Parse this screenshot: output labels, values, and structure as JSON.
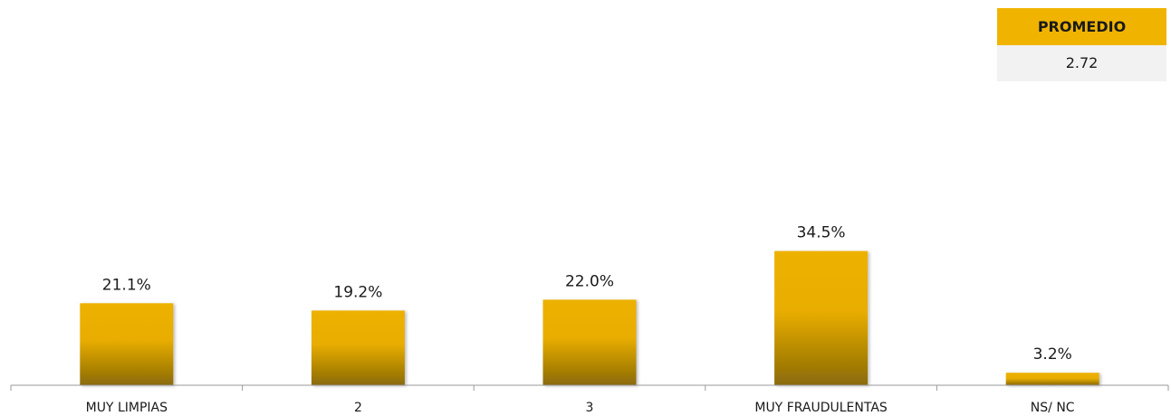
{
  "summary": {
    "header": "PROMEDIO",
    "value": "2.72"
  },
  "colors": {
    "bar_top": "#edb100",
    "bar_bottom": "#8a6a08",
    "header_bg": "#f0b400",
    "value_bg": "#f2f2f2",
    "axis": "#9a9a9a"
  },
  "chart_data": {
    "type": "bar",
    "categories": [
      "MUY LIMPIAS",
      "2",
      "3",
      "MUY FRAUDULENTAS",
      "NS/ NC"
    ],
    "values": [
      21.1,
      19.2,
      22.0,
      34.5,
      3.2
    ],
    "value_labels": [
      "21.1%",
      "19.2%",
      "22.0%",
      "34.5%",
      "3.2%"
    ],
    "ylim": [
      0,
      100
    ],
    "grid": false,
    "legend": "none"
  }
}
